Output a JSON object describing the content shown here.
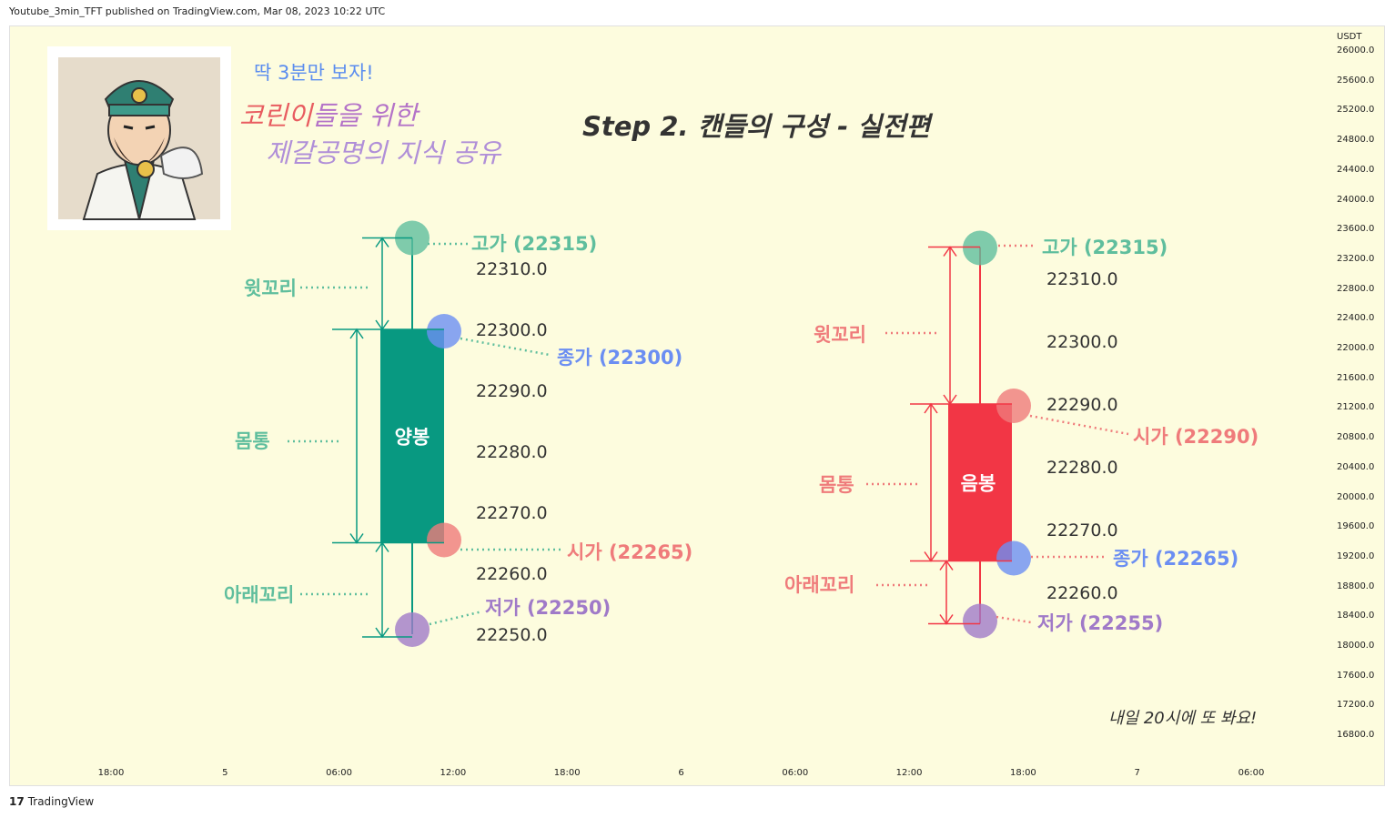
{
  "header": {
    "published": "Youtube_3min_TFT published on TradingView.com, Mar 08, 2023 10:22 UTC"
  },
  "footer": {
    "brand": "TradingView",
    "logo_text": "17"
  },
  "avatar": {
    "icon": "zhuge-liang-illustration"
  },
  "tagline": {
    "line1": "딱 3분만 보자!",
    "line2a": "코린이",
    "line2b": "들을 위한",
    "line3": "제갈공명의 지식 공유"
  },
  "title": "Step 2. 캔들의 구성 - 실전편",
  "closing_note": "내일 20시에 또 봐요!",
  "colors": {
    "bull": "#089981",
    "bear": "#f23645",
    "high": "#5fbe9d",
    "close": "#6b8ef2",
    "open": "#ef7b7b",
    "low": "#a07ac8",
    "plot_bg": "#fdfcde"
  },
  "chart_data": {
    "type": "candlestick",
    "y_axis": {
      "unit": "USDT",
      "ticks": [
        "26000.0",
        "25600.0",
        "25200.0",
        "24800.0",
        "24400.0",
        "24000.0",
        "23600.0",
        "23200.0",
        "22800.0",
        "22400.0",
        "22000.0",
        "21600.0",
        "21200.0",
        "20800.0",
        "20400.0",
        "20000.0",
        "19600.0",
        "19200.0",
        "18800.0",
        "18400.0",
        "18000.0",
        "17600.0",
        "17200.0",
        "16800.0"
      ]
    },
    "x_axis": {
      "ticks": [
        "18:00",
        "5",
        "06:00",
        "12:00",
        "18:00",
        "6",
        "06:00",
        "12:00",
        "18:00",
        "7",
        "06:00"
      ]
    },
    "candles": [
      {
        "body_label": "양봉",
        "direction": "bullish",
        "open": 22265,
        "high": 22315,
        "low": 22250,
        "close": 22300,
        "price_ticks": [
          "22310.0",
          "22300.0",
          "22290.0",
          "22280.0",
          "22270.0",
          "22260.0",
          "22250.0"
        ],
        "labels": {
          "high": "고가 (22315)",
          "close": "종가 (22300)",
          "open": "시가 (22265)",
          "low": "저가 (22250)"
        },
        "parts": {
          "upper_wick": "윗꼬리",
          "body": "몸통",
          "lower_wick": "아래꼬리"
        }
      },
      {
        "body_label": "음봉",
        "direction": "bearish",
        "open": 22290,
        "high": 22315,
        "low": 22255,
        "close": 22265,
        "price_ticks": [
          "22310.0",
          "22300.0",
          "22290.0",
          "22280.0",
          "22270.0",
          "22260.0"
        ],
        "labels": {
          "high": "고가 (22315)",
          "open": "시가 (22290)",
          "close": "종가 (22265)",
          "low": "저가 (22255)"
        },
        "parts": {
          "upper_wick": "윗꼬리",
          "body": "몸통",
          "lower_wick": "아래꼬리"
        }
      }
    ]
  }
}
